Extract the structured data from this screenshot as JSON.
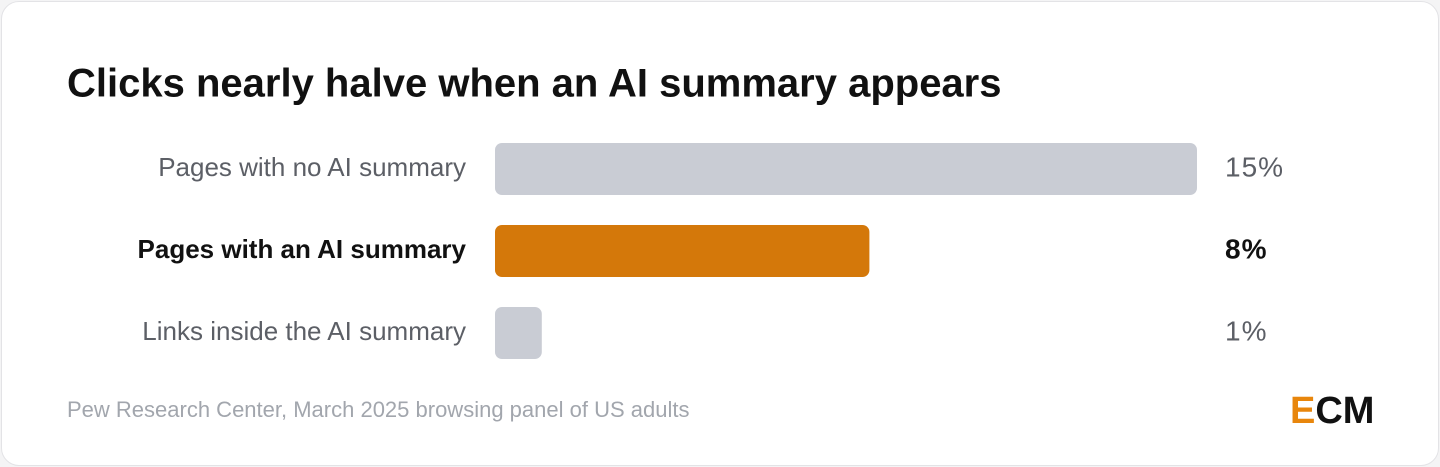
{
  "chart_data": {
    "type": "bar",
    "orientation": "horizontal",
    "title": "Clicks nearly halve when an AI summary appears",
    "categories": [
      "Pages with no AI summary",
      "Pages with an AI summary",
      "Links inside the AI summary"
    ],
    "values": [
      15,
      8,
      1
    ],
    "value_labels": [
      "15%",
      "8%",
      "1%"
    ],
    "colors": [
      "#c9ccd4",
      "#d4780a",
      "#c9ccd4"
    ],
    "highlight": 1,
    "source": "Pew Research Center, March 2025 browsing panel of US adults",
    "logo": "ECM"
  }
}
